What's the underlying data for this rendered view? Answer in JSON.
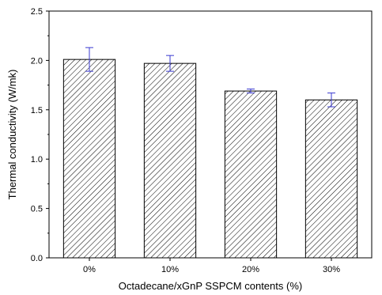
{
  "chart_data": {
    "type": "bar",
    "title": "",
    "xlabel": "Octadecane/xGnP SSPCM contents (%)",
    "ylabel": "Thermal conductivity (W/mk)",
    "categories": [
      "0%",
      "10%",
      "20%",
      "30%"
    ],
    "values": [
      2.01,
      1.97,
      1.69,
      1.6
    ],
    "error_bars": [
      0.12,
      0.08,
      0.02,
      0.07
    ],
    "ylim": [
      0.0,
      2.5
    ],
    "y_ticks": [
      "0.0",
      "0.5",
      "1.0",
      "1.5",
      "2.0",
      "2.5"
    ],
    "y_tick_values": [
      0.0,
      0.5,
      1.0,
      1.5,
      2.0,
      2.5
    ],
    "bar_fill": "hatched",
    "colors": {
      "bar_edge": "#000000",
      "hatch": "#000000",
      "error_bar": "#3a3ad0",
      "axis": "#000000"
    },
    "grid": false,
    "legend": "none"
  }
}
